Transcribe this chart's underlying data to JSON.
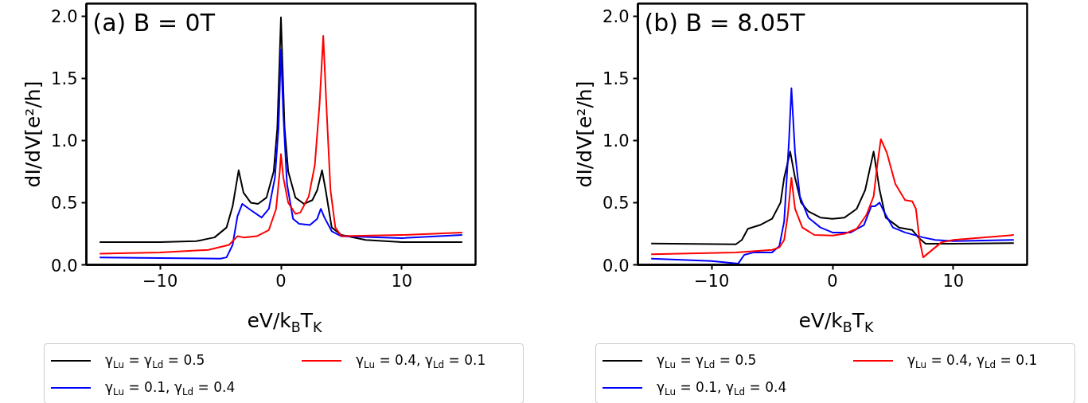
{
  "chart_data": [
    {
      "type": "line",
      "title": "(a) B = 0T",
      "xlabel": "eV/k$_{B}$T$_{K}$",
      "ylabel": "dI/dV[e²/h]",
      "xlim": [
        -16.1,
        16.1
      ],
      "ylim": [
        0,
        2.1
      ],
      "xticks": [
        {
          "value": -10,
          "label": "−10"
        },
        0,
        10
      ],
      "yticks": [
        {
          "value": 0,
          "label": "0.0"
        },
        {
          "value": 0.5,
          "label": "0.5"
        },
        {
          "value": 1,
          "label": "1.0"
        },
        {
          "value": 1.5,
          "label": "1.5"
        },
        {
          "value": 2,
          "label": "2.0"
        }
      ],
      "grid": false,
      "legend": "bottom",
      "line_style": "solid",
      "series": [
        {
          "name": "γ$_{Lu}$ = γ$_{Ld}$ = 0.5",
          "color": "#000000",
          "x": [
            -15,
            -10,
            -7,
            -5.5,
            -4.5,
            -4,
            -3.5,
            -3.1,
            -2.5,
            -1.9,
            -1.2,
            -0.6,
            -0.3,
            0,
            0.3,
            0.6,
            1.2,
            1.9,
            2.6,
            3,
            3.4,
            3.7,
            4.2,
            5,
            7,
            10,
            15
          ],
          "values": [
            0.183,
            0.183,
            0.19,
            0.22,
            0.3,
            0.47,
            0.76,
            0.58,
            0.5,
            0.49,
            0.54,
            0.75,
            1.1,
            1.99,
            1.1,
            0.75,
            0.54,
            0.49,
            0.52,
            0.6,
            0.76,
            0.6,
            0.3,
            0.24,
            0.2,
            0.183,
            0.183
          ]
        },
        {
          "name": "γ$_{Lu}$ = 0.1, γ$_{Ld}$ = 0.4",
          "color": "#0000ff",
          "x": [
            -15,
            -10,
            -5,
            -4.5,
            -4,
            -3.6,
            -3.2,
            -2.5,
            -1.6,
            -1,
            -0.5,
            -0.2,
            0,
            0.2,
            0.5,
            1,
            1.5,
            2.4,
            3,
            3.3,
            3.6,
            4.2,
            5,
            10,
            15
          ],
          "values": [
            0.06,
            0.055,
            0.05,
            0.06,
            0.16,
            0.39,
            0.49,
            0.44,
            0.38,
            0.45,
            0.7,
            1.1,
            1.73,
            1.2,
            0.65,
            0.37,
            0.33,
            0.32,
            0.37,
            0.45,
            0.38,
            0.27,
            0.23,
            0.215,
            0.24
          ]
        },
        {
          "name": "γ$_{Lu}$ = 0.4, γ$_{Ld}$ = 0.1",
          "color": "#ff0000",
          "x": [
            -15,
            -10,
            -6,
            -4.3,
            -3.6,
            -3.1,
            -2,
            -1,
            -0.4,
            -0.1,
            0,
            0.2,
            0.6,
            1.2,
            1.6,
            2.3,
            2.8,
            3.2,
            3.5,
            3.8,
            4.1,
            4.5,
            5,
            10,
            15
          ],
          "values": [
            0.09,
            0.1,
            0.12,
            0.16,
            0.23,
            0.22,
            0.23,
            0.28,
            0.45,
            0.75,
            0.89,
            0.7,
            0.5,
            0.41,
            0.42,
            0.55,
            0.8,
            1.3,
            1.84,
            1.2,
            0.6,
            0.3,
            0.23,
            0.24,
            0.26
          ]
        }
      ]
    },
    {
      "type": "line",
      "title": "(b) B = 8.05T",
      "xlabel": "eV/k$_{B}$T$_{K}$",
      "ylabel": "dI/dV[e²/h]",
      "xlim": [
        -16.1,
        16.1
      ],
      "ylim": [
        0,
        2.1
      ],
      "xticks": [
        {
          "value": -10,
          "label": "−10"
        },
        0,
        10
      ],
      "yticks": [
        {
          "value": 0,
          "label": "0.0"
        },
        {
          "value": 0.5,
          "label": "0.5"
        },
        {
          "value": 1,
          "label": "1.0"
        },
        {
          "value": 1.5,
          "label": "1.5"
        },
        {
          "value": 2,
          "label": "2.0"
        }
      ],
      "grid": false,
      "legend": "bottom",
      "line_style": "solid",
      "series": [
        {
          "name": "γ$_{Lu}$ = γ$_{Ld}$ = 0.5",
          "color": "#000000",
          "x": [
            -15,
            -8,
            -7.5,
            -7,
            -6,
            -5,
            -4.3,
            -4,
            -3.5,
            -3.1,
            -2.6,
            -2,
            -1,
            0,
            1,
            2,
            2.7,
            3.4,
            3.9,
            4.4,
            5.5,
            6.6,
            7.1,
            7.7,
            10,
            15
          ],
          "values": [
            0.172,
            0.165,
            0.2,
            0.29,
            0.32,
            0.37,
            0.5,
            0.7,
            0.91,
            0.7,
            0.5,
            0.43,
            0.38,
            0.37,
            0.38,
            0.45,
            0.6,
            0.91,
            0.6,
            0.38,
            0.3,
            0.28,
            0.22,
            0.17,
            0.17,
            0.175
          ]
        },
        {
          "name": "γ$_{Lu}$ = 0.1, γ$_{Ld}$ = 0.4",
          "color": "#0000ff",
          "x": [
            -15,
            -10,
            -7.8,
            -7.3,
            -6.5,
            -5,
            -4.4,
            -4,
            -3.6,
            -3.4,
            -3.1,
            -2.7,
            -2,
            -1,
            0,
            1.5,
            2.6,
            3.2,
            3.5,
            3.9,
            4.3,
            5,
            6,
            7.5,
            8.5,
            10,
            15
          ],
          "values": [
            0.05,
            0.03,
            0.01,
            0.08,
            0.1,
            0.1,
            0.15,
            0.35,
            1.0,
            1.42,
            0.9,
            0.55,
            0.38,
            0.3,
            0.26,
            0.26,
            0.32,
            0.47,
            0.47,
            0.5,
            0.42,
            0.3,
            0.26,
            0.22,
            0.2,
            0.19,
            0.2
          ]
        },
        {
          "name": "γ$_{Lu}$ = 0.4, γ$_{Ld}$ = 0.1",
          "color": "#ff0000",
          "x": [
            -15,
            -8,
            -5,
            -4.4,
            -4,
            -3.7,
            -3.4,
            -3.1,
            -2.5,
            -1.5,
            0,
            1,
            2,
            2.8,
            3.4,
            3.7,
            4,
            4.5,
            5.2,
            6,
            6.6,
            6.9,
            7.2,
            7.5,
            8,
            9,
            10,
            15
          ],
          "values": [
            0.085,
            0.1,
            0.12,
            0.14,
            0.2,
            0.4,
            0.7,
            0.45,
            0.3,
            0.24,
            0.235,
            0.25,
            0.29,
            0.4,
            0.55,
            0.8,
            1.01,
            0.9,
            0.65,
            0.52,
            0.51,
            0.45,
            0.2,
            0.06,
            0.1,
            0.18,
            0.2,
            0.24
          ]
        }
      ]
    }
  ]
}
